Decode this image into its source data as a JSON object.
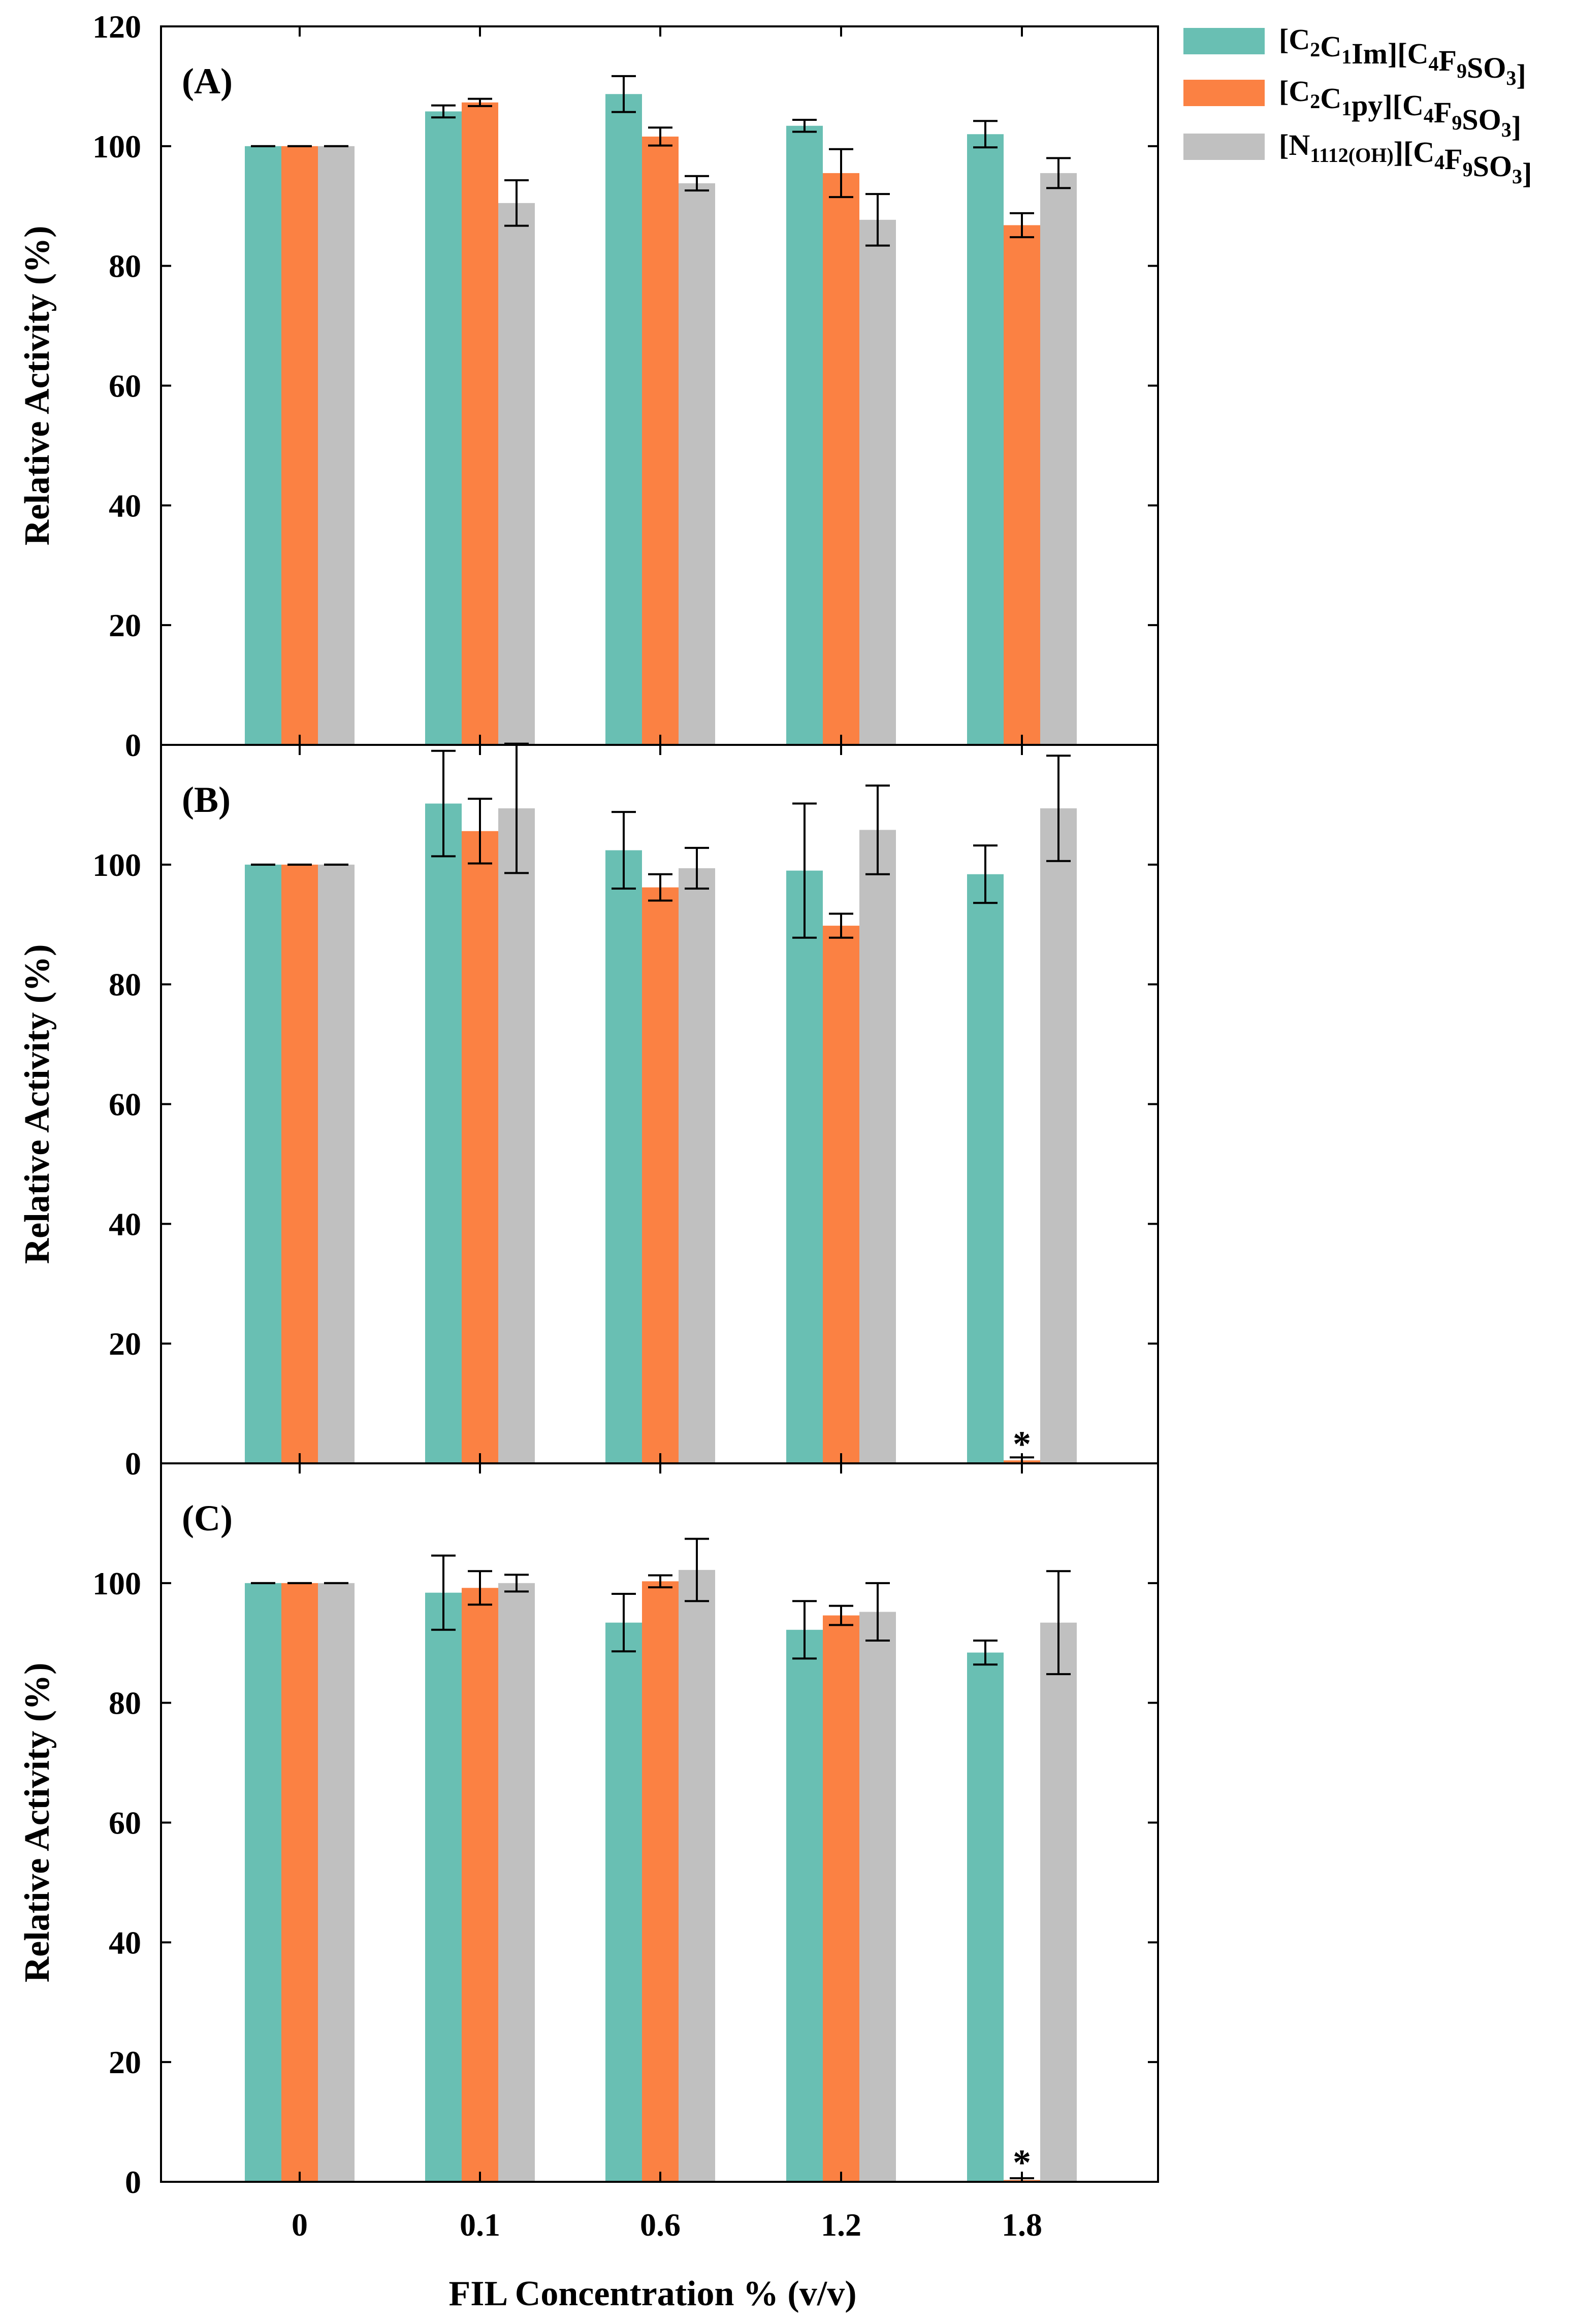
{
  "chart_data": {
    "type": "bar",
    "xlabel": "FIL Concentration % (v/v)",
    "categories": [
      "0",
      "0.1",
      "0.6",
      "1.2",
      "1.8"
    ],
    "ylim": [
      0,
      120
    ],
    "yticks": [
      0,
      20,
      40,
      60,
      80,
      100,
      120
    ],
    "legend": {
      "placement": "top-right, outside plot",
      "entries": [
        {
          "name": "[C2C1Im][C4F9SO3]",
          "color": "#69bfb3",
          "parts": [
            [
              "[C",
              ""
            ],
            [
              "2",
              "sub"
            ],
            [
              "C",
              ""
            ],
            [
              "1",
              "sub"
            ],
            [
              "Im][C",
              ""
            ],
            [
              "4",
              "sub"
            ],
            [
              "F",
              ""
            ],
            [
              "9",
              "sub"
            ],
            [
              "SO",
              ""
            ],
            [
              "3",
              "sub"
            ],
            [
              "]",
              ""
            ]
          ]
        },
        {
          "name": "[C2C1py][C4F9SO3]",
          "color": "#fb8143",
          "parts": [
            [
              "[C",
              ""
            ],
            [
              "2",
              "sub"
            ],
            [
              "C",
              ""
            ],
            [
              "1",
              "sub"
            ],
            [
              "py][C",
              ""
            ],
            [
              "4",
              "sub"
            ],
            [
              "F",
              ""
            ],
            [
              "9",
              "sub"
            ],
            [
              "SO",
              ""
            ],
            [
              "3",
              "sub"
            ],
            [
              "]",
              ""
            ]
          ]
        },
        {
          "name": "[N1112(OH)][C4F9SO3]",
          "color": "#c0c0c0",
          "parts": [
            [
              "[N",
              ""
            ],
            [
              "1112(OH)",
              "sub"
            ],
            [
              "][C",
              ""
            ],
            [
              "4",
              "sub"
            ],
            [
              "F",
              ""
            ],
            [
              "9",
              "sub"
            ],
            [
              "SO",
              ""
            ],
            [
              "3",
              "sub"
            ],
            [
              "]",
              ""
            ]
          ]
        }
      ]
    },
    "panels": [
      {
        "label": "(A)",
        "ylabel": "Relative Activity (%)",
        "series": [
          {
            "name": "[C2C1Im][C4F9SO3]",
            "values": [
              100,
              105.8,
              108.7,
              103.4,
              102.0
            ],
            "errors": [
              0,
              1.0,
              3.0,
              1.0,
              2.2
            ]
          },
          {
            "name": "[C2C1py][C4F9SO3]",
            "values": [
              100,
              107.3,
              101.6,
              95.5,
              86.8
            ],
            "errors": [
              0,
              0.6,
              1.5,
              4.0,
              2.0
            ]
          },
          {
            "name": "[N1112(OH)][C4F9SO3]",
            "values": [
              100,
              90.5,
              93.8,
              87.7,
              95.5
            ],
            "errors": [
              0,
              3.8,
              1.2,
              4.3,
              2.5
            ]
          }
        ]
      },
      {
        "label": "(B)",
        "ylabel": "Relative Activity (%)",
        "series": [
          {
            "name": "[C2C1Im][C4F9SO3]",
            "values": [
              100,
              110.2,
              102.4,
              99.0,
              98.4
            ],
            "errors": [
              0,
              8.8,
              6.4,
              11.2,
              4.8
            ]
          },
          {
            "name": "[C2C1py][C4F9SO3]",
            "values": [
              100,
              105.6,
              96.2,
              89.8,
              0.5
            ],
            "errors": [
              0,
              5.4,
              2.2,
              2.0,
              0.5
            ]
          },
          {
            "name": "[N1112(OH)][C4F9SO3]",
            "values": [
              100,
              109.4,
              99.4,
              105.8,
              109.4
            ],
            "errors": [
              0,
              10.8,
              3.4,
              7.4,
              8.8
            ]
          }
        ],
        "annotations": [
          {
            "category": "1.8",
            "series": 1,
            "text": "*"
          }
        ]
      },
      {
        "label": "(C)",
        "ylabel": "Relative Activity (%)",
        "series": [
          {
            "name": "[C2C1Im][C4F9SO3]",
            "values": [
              100,
              98.4,
              93.4,
              92.2,
              88.4
            ],
            "errors": [
              0,
              6.2,
              4.8,
              4.8,
              2.0
            ]
          },
          {
            "name": "[C2C1py][C4F9SO3]",
            "values": [
              100,
              99.2,
              100.3,
              94.6,
              0.3
            ],
            "errors": [
              0,
              2.8,
              1.0,
              1.6,
              0.3
            ]
          },
          {
            "name": "[N1112(OH)][C4F9SO3]",
            "values": [
              100,
              100.0,
              102.2,
              95.2,
              93.4
            ],
            "errors": [
              0,
              1.4,
              5.2,
              4.8,
              8.6
            ]
          }
        ],
        "annotations": [
          {
            "category": "1.8",
            "series": 1,
            "text": "*"
          }
        ]
      }
    ]
  }
}
